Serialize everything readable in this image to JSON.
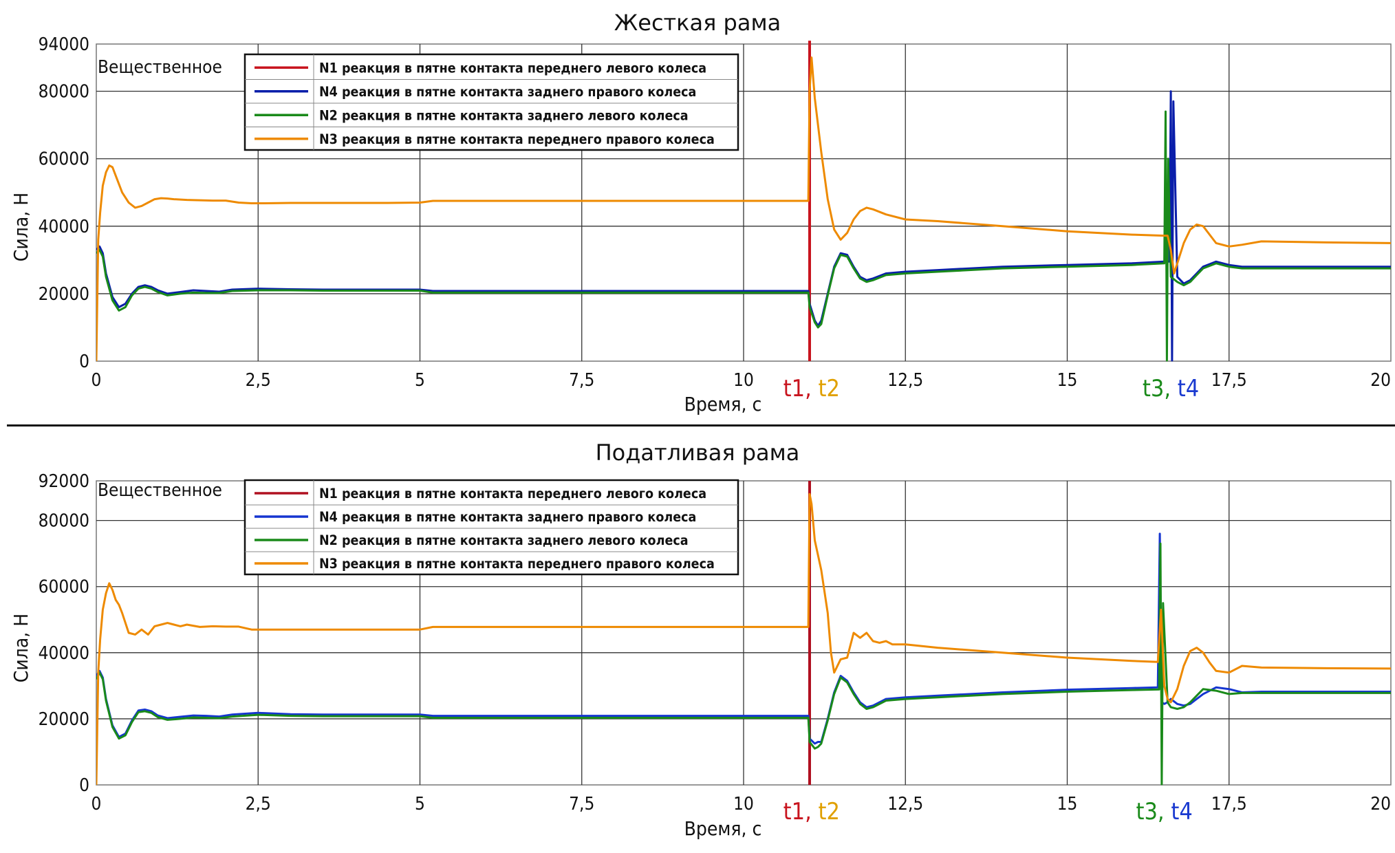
{
  "chart_data": [
    {
      "type": "line",
      "title": "Жесткая рама",
      "xlabel": "Время, с",
      "ylabel": "Сила, Н",
      "xlim": [
        0,
        20
      ],
      "ylim": [
        0,
        94000
      ],
      "x_ticks": [
        "0",
        "2,5",
        "5",
        "7,5",
        "10",
        "12,5",
        "15",
        "17,5",
        "20"
      ],
      "x_tick_values": [
        0,
        2.5,
        5,
        7.5,
        10,
        12.5,
        15,
        17.5,
        20
      ],
      "y_ticks": [
        "0",
        "20000",
        "40000",
        "60000",
        "80000",
        "94000"
      ],
      "y_tick_values": [
        0,
        20000,
        40000,
        60000,
        80000,
        94000
      ],
      "corner_label": "Вещественное",
      "legend_position": "top-left",
      "grid": true,
      "event_labels": [
        {
          "x": 11.05,
          "parts": [
            {
              "text": "t1,",
              "color": "#c8141e"
            },
            {
              "text": " t2",
              "color": "#e0a000"
            }
          ]
        },
        {
          "x": 16.6,
          "parts": [
            {
              "text": "t3,",
              "color": "#1a8a1a"
            },
            {
              "text": " t4",
              "color": "#1a3ad0"
            }
          ]
        }
      ],
      "series": [
        {
          "name": "N1 реакция в пятне контакта переднего левого колеса",
          "color": "#c8141e",
          "x": [
            11.02,
            11.02
          ],
          "y": [
            0,
            95000
          ]
        },
        {
          "name": "N4 реакция в пятне контакта заднего правого колеса",
          "color": "#0a1eaa",
          "x": [
            0,
            0.05,
            0.1,
            0.15,
            0.25,
            0.35,
            0.45,
            0.55,
            0.65,
            0.75,
            0.85,
            0.95,
            1.1,
            1.3,
            1.5,
            1.7,
            1.9,
            2.1,
            2.5,
            3,
            3.5,
            4,
            4.5,
            5,
            5.2,
            5.5,
            6,
            7,
            8,
            9,
            10,
            11,
            11.02,
            11.1,
            11.15,
            11.2,
            11.3,
            11.4,
            11.5,
            11.6,
            11.7,
            11.8,
            11.9,
            12,
            12.2,
            12.5,
            13,
            14,
            15,
            16,
            16.5,
            16.55,
            16.58,
            16.6,
            16.62,
            16.64,
            16.7,
            16.75,
            16.8,
            16.9,
            17,
            17.1,
            17.3,
            17.5,
            17.7,
            18,
            19,
            20
          ],
          "y": [
            33000,
            34000,
            32000,
            26000,
            19000,
            16000,
            17000,
            20000,
            22000,
            22500,
            22000,
            21000,
            20000,
            20500,
            21000,
            20800,
            20600,
            21200,
            21500,
            21300,
            21200,
            21200,
            21200,
            21200,
            20800,
            20800,
            20800,
            20800,
            20800,
            20800,
            20800,
            20800,
            17000,
            12000,
            10500,
            12000,
            20000,
            28000,
            32000,
            31500,
            28000,
            25000,
            24000,
            24500,
            26000,
            26500,
            27000,
            28000,
            28500,
            29000,
            29500,
            29500,
            29500,
            80000,
            200,
            77000,
            25000,
            24000,
            23000,
            24000,
            26000,
            28000,
            29500,
            28500,
            28000,
            28000,
            28000,
            28000
          ]
        },
        {
          "name": "N2 реакция в пятне контакта заднего левого колеса",
          "color": "#1a8a1a",
          "x": [
            0,
            0.05,
            0.1,
            0.15,
            0.25,
            0.35,
            0.45,
            0.55,
            0.65,
            0.75,
            0.85,
            0.95,
            1.1,
            1.3,
            1.5,
            1.7,
            1.9,
            2.1,
            2.5,
            3,
            3.5,
            4,
            4.5,
            5,
            5.2,
            5.5,
            6,
            7,
            8,
            9,
            10,
            11,
            11.02,
            11.1,
            11.15,
            11.2,
            11.3,
            11.4,
            11.5,
            11.6,
            11.7,
            11.8,
            11.9,
            12,
            12.2,
            12.5,
            13,
            14,
            15,
            16,
            16.5,
            16.52,
            16.54,
            16.56,
            16.6,
            16.7,
            16.8,
            16.9,
            17,
            17.1,
            17.3,
            17.5,
            17.7,
            18,
            19,
            20
          ],
          "y": [
            32000,
            33000,
            31000,
            25000,
            18000,
            15000,
            16000,
            19500,
            21500,
            22000,
            21500,
            20500,
            19500,
            20000,
            20300,
            20200,
            20200,
            20800,
            21000,
            21000,
            20900,
            20900,
            20900,
            20900,
            20300,
            20300,
            20300,
            20300,
            20300,
            20300,
            20300,
            20300,
            16000,
            11500,
            10000,
            11000,
            19500,
            27500,
            31500,
            31000,
            27500,
            24500,
            23500,
            24000,
            25500,
            26000,
            26500,
            27500,
            28000,
            28500,
            29000,
            74000,
            200,
            60000,
            25000,
            23500,
            22500,
            23500,
            25500,
            27500,
            29000,
            28000,
            27500,
            27500,
            27500,
            27500
          ]
        },
        {
          "name": "N3 реакция в пятне контакта переднего правого колеса",
          "color": "#ee8a00",
          "x": [
            0,
            0.03,
            0.06,
            0.1,
            0.15,
            0.2,
            0.25,
            0.3,
            0.4,
            0.5,
            0.6,
            0.7,
            0.8,
            0.9,
            1.0,
            1.1,
            1.2,
            1.4,
            1.6,
            1.8,
            2.0,
            2.2,
            2.4,
            2.6,
            3,
            3.5,
            4,
            4.5,
            5,
            5.2,
            5.5,
            6,
            7,
            8,
            9,
            10,
            11,
            11.02,
            11.05,
            11.1,
            11.2,
            11.3,
            11.4,
            11.5,
            11.6,
            11.7,
            11.8,
            11.9,
            12,
            12.2,
            12.5,
            13,
            14,
            15,
            16,
            16.5,
            16.55,
            16.6,
            16.65,
            16.7,
            16.8,
            16.9,
            17,
            17.1,
            17.2,
            17.3,
            17.5,
            17.7,
            18,
            19,
            20
          ],
          "y": [
            0,
            36000,
            44000,
            52000,
            56000,
            58000,
            57500,
            55000,
            50000,
            47000,
            45500,
            46000,
            47000,
            48000,
            48300,
            48200,
            48000,
            47800,
            47700,
            47600,
            47600,
            47000,
            46800,
            46800,
            46900,
            46900,
            46900,
            46900,
            47000,
            47500,
            47500,
            47500,
            47500,
            47500,
            47500,
            47500,
            47500,
            80000,
            90000,
            78000,
            62000,
            48000,
            39000,
            36000,
            38000,
            42000,
            44500,
            45500,
            45000,
            43500,
            42000,
            41500,
            40000,
            38500,
            37500,
            37200,
            37200,
            33000,
            26000,
            29000,
            35000,
            39000,
            40500,
            40000,
            37500,
            35000,
            34000,
            34500,
            35500,
            35200,
            35000
          ]
        }
      ]
    },
    {
      "type": "line",
      "title": "Податливая рама",
      "xlabel": "Время, с",
      "ylabel": "Сила, Н",
      "xlim": [
        0,
        20
      ],
      "ylim": [
        0,
        92000
      ],
      "x_ticks": [
        "0",
        "2,5",
        "5",
        "7,5",
        "10",
        "12,5",
        "15",
        "17,5",
        "20"
      ],
      "x_tick_values": [
        0,
        2.5,
        5,
        7.5,
        10,
        12.5,
        15,
        17.5,
        20
      ],
      "y_ticks": [
        "0",
        "20000",
        "40000",
        "60000",
        "80000",
        "92000"
      ],
      "y_tick_values": [
        0,
        20000,
        40000,
        60000,
        80000,
        92000
      ],
      "corner_label": "Вещественное",
      "legend_position": "top-left",
      "grid": true,
      "event_labels": [
        {
          "x": 11.05,
          "parts": [
            {
              "text": "t1,",
              "color": "#c8141e"
            },
            {
              "text": " t2",
              "color": "#e0a000"
            }
          ]
        },
        {
          "x": 16.5,
          "parts": [
            {
              "text": "t3,",
              "color": "#1a8a1a"
            },
            {
              "text": " t4",
              "color": "#1a3ad0"
            }
          ]
        }
      ],
      "series": [
        {
          "name": "N1 реакция в пятне контакта переднего левого колеса",
          "color": "#b01020",
          "x": [
            11.02,
            11.02
          ],
          "y": [
            0,
            92000
          ]
        },
        {
          "name": "N4 реакция в пятне контакта заднего правого колеса",
          "color": "#1535d0",
          "x": [
            0,
            0.05,
            0.1,
            0.15,
            0.25,
            0.35,
            0.45,
            0.55,
            0.65,
            0.75,
            0.85,
            0.95,
            1.1,
            1.3,
            1.5,
            1.7,
            1.9,
            2.1,
            2.5,
            3,
            3.5,
            4,
            4.5,
            5,
            5.2,
            5.5,
            6,
            7,
            8,
            9,
            10,
            11,
            11.02,
            11.1,
            11.15,
            11.2,
            11.3,
            11.4,
            11.5,
            11.6,
            11.7,
            11.8,
            11.9,
            12,
            12.2,
            12.5,
            13,
            14,
            15,
            16,
            16.4,
            16.43,
            16.46,
            16.5,
            16.55,
            16.6,
            16.7,
            16.8,
            16.9,
            17,
            17.1,
            17.3,
            17.5,
            17.7,
            18,
            19,
            20
          ],
          "y": [
            33000,
            34500,
            32500,
            26000,
            18000,
            14500,
            15500,
            19500,
            22500,
            22800,
            22300,
            21000,
            20200,
            20600,
            21000,
            20900,
            20700,
            21300,
            21800,
            21400,
            21300,
            21300,
            21300,
            21300,
            20900,
            20900,
            20900,
            20900,
            20900,
            20900,
            20900,
            20900,
            14000,
            12500,
            13000,
            13000,
            20000,
            28000,
            33000,
            31500,
            28000,
            25000,
            23500,
            24000,
            26000,
            26500,
            27000,
            28000,
            28800,
            29300,
            29500,
            76000,
            25000,
            24500,
            25000,
            26000,
            24500,
            24000,
            24500,
            26000,
            27500,
            29500,
            29000,
            28000,
            28200,
            28200,
            28200
          ]
        },
        {
          "name": "N2 реакция в пятне контакта заднего левого колеса",
          "color": "#1a8a1a",
          "x": [
            0,
            0.05,
            0.1,
            0.15,
            0.25,
            0.35,
            0.45,
            0.55,
            0.65,
            0.75,
            0.85,
            0.95,
            1.1,
            1.3,
            1.5,
            1.7,
            1.9,
            2.1,
            2.5,
            3,
            3.5,
            4,
            4.5,
            5,
            5.2,
            5.5,
            6,
            7,
            8,
            9,
            10,
            11,
            11.02,
            11.1,
            11.15,
            11.2,
            11.3,
            11.4,
            11.5,
            11.6,
            11.7,
            11.8,
            11.9,
            12,
            12.2,
            12.5,
            13,
            14,
            15,
            16,
            16.42,
            16.44,
            16.46,
            16.48,
            16.55,
            16.6,
            16.7,
            16.8,
            16.9,
            17,
            17.1,
            17.3,
            17.5,
            17.7,
            18,
            19,
            20
          ],
          "y": [
            32000,
            34000,
            32000,
            25500,
            17500,
            14000,
            15000,
            19000,
            22000,
            22300,
            21800,
            20500,
            19700,
            20000,
            20400,
            20300,
            20200,
            20700,
            21200,
            20900,
            20800,
            20800,
            20800,
            20800,
            20300,
            20300,
            20300,
            20300,
            20300,
            20300,
            20300,
            20300,
            13000,
            11000,
            11500,
            12500,
            19500,
            27500,
            32500,
            31000,
            27500,
            24500,
            23000,
            23500,
            25500,
            26000,
            26500,
            27500,
            28200,
            28700,
            28900,
            73000,
            200,
            55000,
            25000,
            23500,
            23000,
            23500,
            25000,
            27000,
            29000,
            28500,
            27500,
            27800,
            27800,
            27800,
            27800
          ]
        },
        {
          "name": "N3 реакция в пятне контакта переднего правого колеса",
          "color": "#ee8a00",
          "x": [
            0,
            0.03,
            0.06,
            0.1,
            0.15,
            0.2,
            0.25,
            0.3,
            0.35,
            0.4,
            0.5,
            0.6,
            0.7,
            0.8,
            0.9,
            1.0,
            1.1,
            1.2,
            1.3,
            1.4,
            1.6,
            1.8,
            2.0,
            2.2,
            2.4,
            2.6,
            3,
            3.5,
            4,
            4.5,
            5,
            5.2,
            5.5,
            6,
            7,
            8,
            9,
            10,
            11,
            11.02,
            11.05,
            11.1,
            11.2,
            11.3,
            11.35,
            11.4,
            11.5,
            11.6,
            11.7,
            11.8,
            11.9,
            12,
            12.1,
            12.2,
            12.3,
            12.5,
            13,
            14,
            15,
            16,
            16.4,
            16.45,
            16.5,
            16.55,
            16.6,
            16.7,
            16.8,
            16.9,
            17,
            17.1,
            17.2,
            17.3,
            17.5,
            17.7,
            18,
            19,
            20
          ],
          "y": [
            0,
            34000,
            44000,
            53000,
            58000,
            61000,
            59000,
            56000,
            54500,
            52000,
            46000,
            45500,
            47000,
            45500,
            48000,
            48500,
            49000,
            48500,
            48000,
            48500,
            47800,
            48000,
            47900,
            47900,
            47000,
            47000,
            47000,
            47000,
            47000,
            47000,
            47000,
            47800,
            47800,
            47800,
            47800,
            47800,
            47800,
            47800,
            47800,
            88000,
            85000,
            74000,
            65000,
            52000,
            40000,
            34000,
            38000,
            38500,
            46000,
            44500,
            46000,
            43500,
            43000,
            43500,
            42500,
            42500,
            41500,
            40000,
            38500,
            37500,
            37200,
            53000,
            30000,
            26000,
            25000,
            29000,
            36000,
            40500,
            41500,
            40000,
            37000,
            34500,
            34000,
            36000,
            35500,
            35300,
            35200
          ]
        }
      ]
    }
  ]
}
